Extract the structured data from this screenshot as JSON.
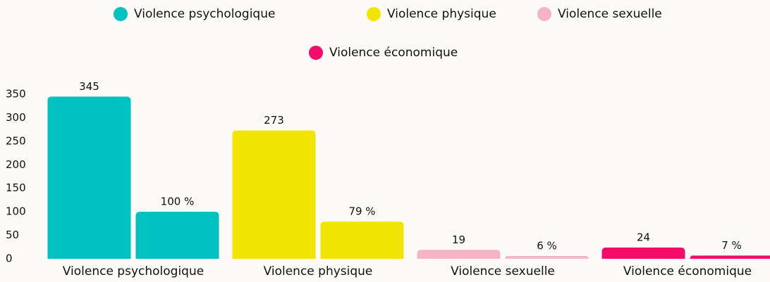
{
  "chart_data": {
    "type": "bar",
    "categories": [
      "Violence psychologique",
      "Violence physique",
      "Violence sexuelle",
      "Violence économique"
    ],
    "colors": [
      "#00c2c0",
      "#f2e600",
      "#f7b3c7",
      "#f50c68"
    ],
    "series": [
      {
        "values": [
          345,
          273,
          19,
          24
        ]
      },
      {
        "values": [
          100,
          79,
          6,
          7
        ],
        "value_labels": [
          "100 %",
          "79 %",
          "6 %",
          "7 %"
        ]
      }
    ],
    "ylim": [
      0,
      350
    ],
    "yticks": [
      0,
      50,
      100,
      150,
      200,
      250,
      300,
      350
    ],
    "grid": false
  }
}
